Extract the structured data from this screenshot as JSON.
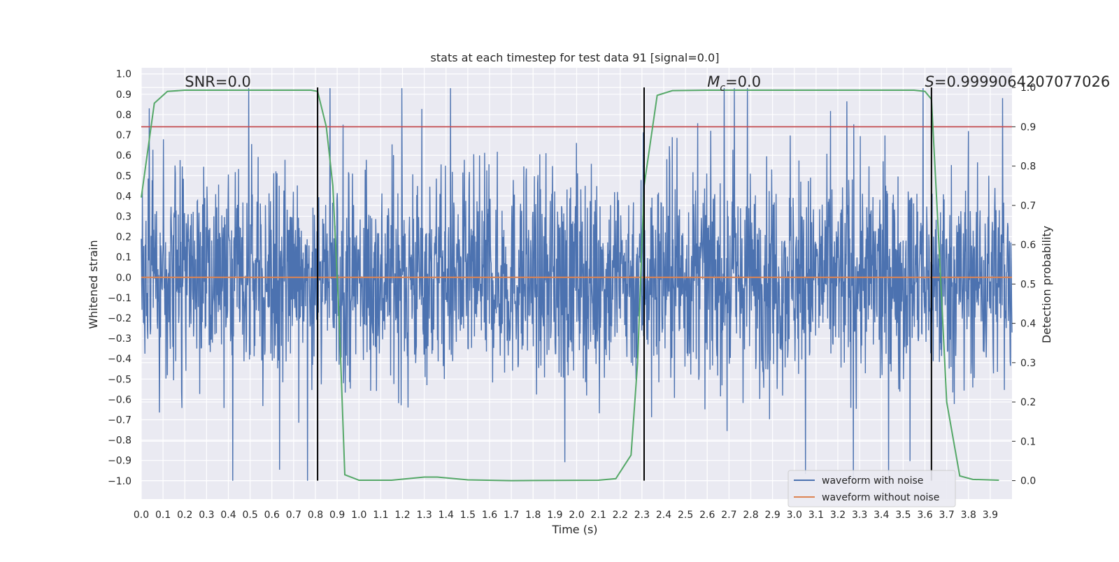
{
  "chart_data": {
    "type": "line",
    "title": "stats at each timestep for test data 91 [signal=0.0]",
    "xlabel": "Time (s)",
    "ylabel": "Whitened strain",
    "y2label": "Detection probability",
    "xlim": [
      0.0,
      4.0
    ],
    "ylim": [
      -1.09,
      1.03
    ],
    "y2lim": [
      -0.047,
      1.05
    ],
    "xticks": [
      "0.0",
      "0.1",
      "0.2",
      "0.3",
      "0.4",
      "0.5",
      "0.6",
      "0.7",
      "0.8",
      "0.9",
      "1.0",
      "1.1",
      "1.2",
      "1.3",
      "1.4",
      "1.5",
      "1.6",
      "1.7",
      "1.8",
      "1.9",
      "2.0",
      "2.1",
      "2.2",
      "2.3",
      "2.4",
      "2.5",
      "2.6",
      "2.7",
      "2.8",
      "2.9",
      "3.0",
      "3.1",
      "3.2",
      "3.3",
      "3.4",
      "3.5",
      "3.6",
      "3.7",
      "3.8",
      "3.9"
    ],
    "yticks": [
      "1.0",
      "0.9",
      "0.8",
      "0.7",
      "0.6",
      "0.5",
      "0.4",
      "0.3",
      "0.2",
      "0.1",
      "0.0",
      "−0.1",
      "−0.2",
      "−0.3",
      "−0.4",
      "−0.5",
      "−0.6",
      "−0.7",
      "−0.8",
      "−0.9",
      "−1.0"
    ],
    "y2ticks": [
      "1.0",
      "0.9",
      "0.8",
      "0.7",
      "0.6",
      "0.5",
      "0.4",
      "0.3",
      "0.2",
      "0.1",
      "0.0"
    ],
    "threshold": 0.9,
    "vlines": [
      0.81,
      2.31,
      3.63
    ],
    "annotations": [
      {
        "text": "SNR=0.0",
        "x": 0.2
      },
      {
        "text": "=0.0",
        "math": "M",
        "sub": "c",
        "x": 2.6
      },
      {
        "text": "=0.9999064207077026",
        "math": "S",
        "x": 3.6
      }
    ],
    "series": [
      {
        "name": "waveform with noise",
        "color": "#4c72b0",
        "kind": "noise",
        "amplitude": [
          -1.0,
          0.93
        ]
      },
      {
        "name": "waveform without noise",
        "color": "#dd8452",
        "x": [
          0.0,
          4.0
        ],
        "values": [
          0.0,
          0.0
        ]
      },
      {
        "name": "detection probability",
        "color": "#55a868",
        "axis": "right",
        "x": [
          0.0,
          0.06,
          0.12,
          0.2,
          0.3,
          0.5,
          0.7,
          0.78,
          0.81,
          0.85,
          0.88,
          0.91,
          0.935,
          1.0,
          1.15,
          1.3,
          1.36,
          1.5,
          1.7,
          2.1,
          2.18,
          2.25,
          2.28,
          2.31,
          2.37,
          2.44,
          2.6,
          3.0,
          3.4,
          3.55,
          3.6,
          3.63,
          3.66,
          3.7,
          3.76,
          3.82,
          3.94
        ],
        "values": [
          0.72,
          0.96,
          0.99,
          0.993,
          0.993,
          0.993,
          0.993,
          0.993,
          0.99,
          0.9,
          0.75,
          0.4,
          0.015,
          0.001,
          0.001,
          0.009,
          0.009,
          0.002,
          0.0,
          0.001,
          0.005,
          0.065,
          0.3,
          0.75,
          0.98,
          0.992,
          0.993,
          0.993,
          0.993,
          0.993,
          0.99,
          0.97,
          0.65,
          0.2,
          0.012,
          0.003,
          0.001
        ]
      }
    ],
    "legend": {
      "placement": "lower-right",
      "entries": [
        "waveform with noise",
        "waveform without noise"
      ]
    },
    "grid": true
  }
}
